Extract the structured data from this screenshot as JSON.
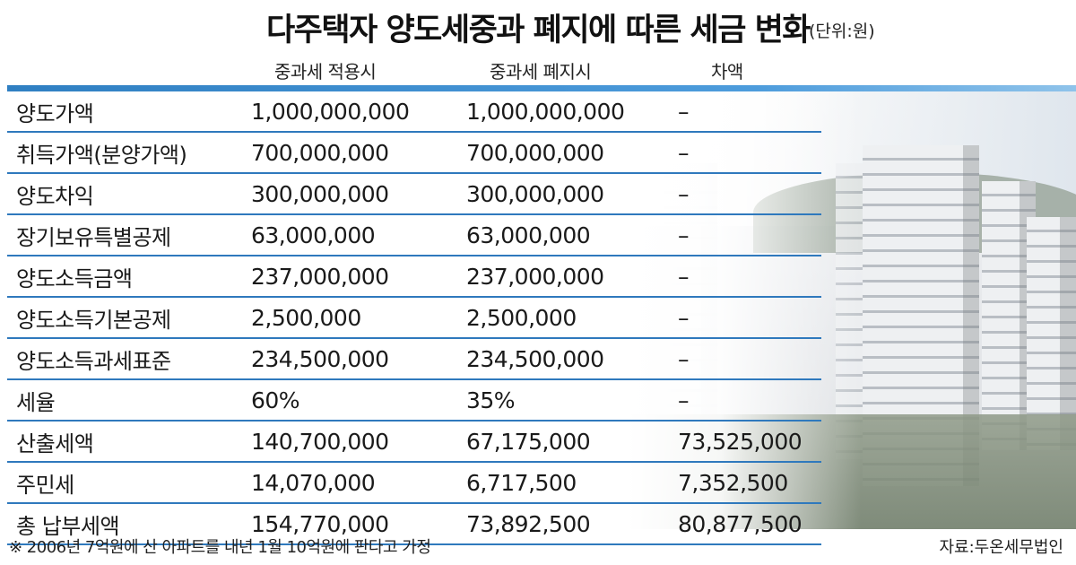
{
  "title": "다주택자 양도세중과 폐지에 따른 세금 변화",
  "unit": "(단위:원)",
  "columns": [
    "중과세 적용시",
    "중과세 폐지시",
    "차액"
  ],
  "rows": [
    {
      "label": "양도가액",
      "v1": "1,000,000,000",
      "v2": "1,000,000,000",
      "v3": "–"
    },
    {
      "label": "취득가액(분양가액)",
      "v1": "700,000,000",
      "v2": "700,000,000",
      "v3": "–"
    },
    {
      "label": "양도차익",
      "v1": "300,000,000",
      "v2": "300,000,000",
      "v3": "–"
    },
    {
      "label": "장기보유특별공제",
      "v1": "63,000,000",
      "v2": "63,000,000",
      "v3": "–"
    },
    {
      "label": "양도소득금액",
      "v1": "237,000,000",
      "v2": "237,000,000",
      "v3": "–"
    },
    {
      "label": "양도소득기본공제",
      "v1": "2,500,000",
      "v2": "2,500,000",
      "v3": "–"
    },
    {
      "label": "양도소득과세표준",
      "v1": "234,500,000",
      "v2": "234,500,000",
      "v3": "–"
    },
    {
      "label": "세율",
      "v1": "60%",
      "v2": "35%",
      "v3": "–"
    },
    {
      "label": "산출세액",
      "v1": "140,700,000",
      "v2": "67,175,000",
      "v3": "73,525,000"
    },
    {
      "label": "주민세",
      "v1": "14,070,000",
      "v2": "6,717,500",
      "v3": "7,352,500"
    },
    {
      "label": "총 납부세액",
      "v1": "154,770,000",
      "v2": "73,892,500",
      "v3": "80,877,500"
    }
  ],
  "footnote": "※ 2006년 7억원에 산 아파트를 내년 1월 10억원에 판다고 가정",
  "source": "자료:두온세무법인",
  "colors": {
    "accent": "#2f79bd"
  }
}
